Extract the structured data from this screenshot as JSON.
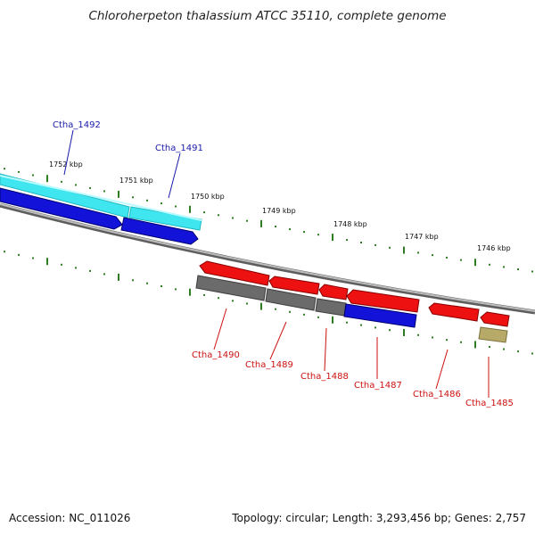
{
  "title": "Chloroherpeton thalassium ATCC 35110, complete genome",
  "footer": {
    "accession": "Accession: NC_011026",
    "stats": "Topology: circular; Length: 3,293,456 bp; Genes: 2,757"
  },
  "colors": {
    "tick": "#2e7d22",
    "backbone": "#8c8c8c",
    "cyan": "#3fe6ef",
    "blue": "#1212d9",
    "red": "#ee1111",
    "gray": "#6b6b6b",
    "tan": "#b7aa69",
    "label_blue": "#1a1aaa",
    "label_red": "#cc1111"
  },
  "kbp_labels": [
    "1752 kbp",
    "1751 kbp",
    "1750 kbp",
    "1749 kbp",
    "1748 kbp",
    "1747 kbp",
    "1746 kbp"
  ],
  "genes": [
    {
      "name": "Ctha_1492",
      "color": "label_blue"
    },
    {
      "name": "Ctha_1491",
      "color": "label_blue"
    },
    {
      "name": "Ctha_1490",
      "color": "label_red"
    },
    {
      "name": "Ctha_1489",
      "color": "label_red"
    },
    {
      "name": "Ctha_1488",
      "color": "label_red"
    },
    {
      "name": "Ctha_1487",
      "color": "label_red"
    },
    {
      "name": "Ctha_1486",
      "color": "label_red"
    },
    {
      "name": "Ctha_1485",
      "color": "label_red"
    }
  ]
}
